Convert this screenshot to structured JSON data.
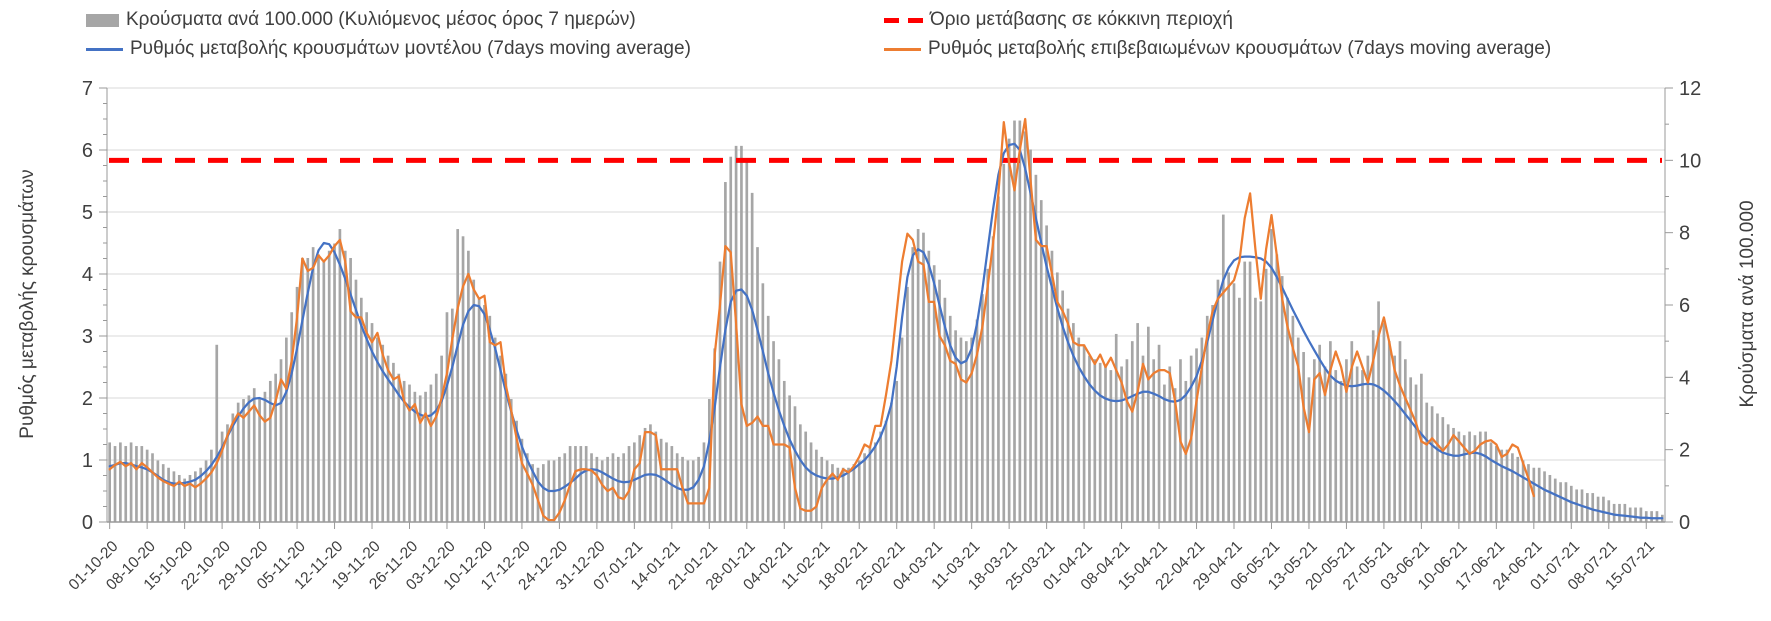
{
  "legend": {
    "items": [
      {
        "label": "Κρούσματα ανά 100.000 (Κυλιόμενος μέσος όρος 7 ημερών)",
        "swatch": "bar",
        "color": "#a6a6a6"
      },
      {
        "label": "Όριο μετάβασης σε κόκκινη περιοχή",
        "swatch": "dashed-line",
        "color": "#ff0000"
      },
      {
        "label": "Ρυθμός μεταβολής κρουσμάτων μοντέλου (7days moving average)",
        "swatch": "line",
        "color": "#4472c4"
      },
      {
        "label": "Ρυθμός μεταβολής επιβεβαιωμένων κρουσμάτων (7days moving average)",
        "swatch": "line",
        "color": "#ed7d31"
      }
    ]
  },
  "chart_data": {
    "type": "combo",
    "grid": "horizontal",
    "background": "#ffffff",
    "axes": {
      "left": {
        "title": "Ρυθμός μεταβολής κρουσμάτων",
        "min": 0,
        "max": 7,
        "ticks": [
          0,
          1,
          2,
          3,
          4,
          5,
          6,
          7
        ]
      },
      "right": {
        "title": "Κρούσματα ανά 100.000",
        "min": 0,
        "max": 12,
        "ticks": [
          0,
          2,
          4,
          6,
          8,
          10,
          12
        ]
      }
    },
    "x": {
      "n_points": 291,
      "tick_every_days": 7,
      "tick_labels": [
        "01-10-20",
        "08-10-20",
        "15-10-20",
        "22-10-20",
        "29-10-20",
        "05-11-20",
        "12-11-20",
        "19-11-20",
        "26-11-20",
        "03-12-20",
        "10-12-20",
        "17-12-20",
        "24-12-20",
        "31-12-20",
        "07-01-21",
        "14-01-21",
        "21-01-21",
        "28-01-21",
        "04-02-21",
        "11-02-21",
        "18-02-21",
        "25-02-21",
        "04-03-21",
        "11-03-21",
        "18-03-21",
        "25-03-21",
        "01-04-21",
        "08-04-21",
        "15-04-21",
        "22-04-21",
        "29-04-21",
        "06-05-21",
        "13-05-21",
        "20-05-21",
        "27-05-21",
        "03-06-21",
        "10-06-21",
        "17-06-21",
        "24-06-21",
        "01-07-21",
        "08-07-21",
        "15-07-21"
      ]
    },
    "series": [
      {
        "name": "Κρούσματα ανά 100.000 (Κυλιόμενος μέσος όρος 7 ημερών)",
        "type": "bar",
        "axis": "right",
        "color": "#a6a6a6",
        "values": [
          2.2,
          2.1,
          2.2,
          2.1,
          2.2,
          2.1,
          2.1,
          2.0,
          1.9,
          1.7,
          1.6,
          1.5,
          1.4,
          1.3,
          1.2,
          1.3,
          1.4,
          1.5,
          1.7,
          2.0,
          4.9,
          2.5,
          2.7,
          3.0,
          3.3,
          3.4,
          3.5,
          3.7,
          3.4,
          3.6,
          3.9,
          4.1,
          4.5,
          5.1,
          5.8,
          6.5,
          7.3,
          7.3,
          7.6,
          7.4,
          7.2,
          7.5,
          7.7,
          8.1,
          7.5,
          7.3,
          6.7,
          6.2,
          5.8,
          5.5,
          5.1,
          4.9,
          4.6,
          4.4,
          4.1,
          3.9,
          3.8,
          3.6,
          3.5,
          3.6,
          3.8,
          4.1,
          4.6,
          5.8,
          5.9,
          8.1,
          7.9,
          7.5,
          6.7,
          6.2,
          6.0,
          5.7,
          5.1,
          4.6,
          4.1,
          3.4,
          2.8,
          2.3,
          1.9,
          1.6,
          1.5,
          1.6,
          1.7,
          1.7,
          1.8,
          1.9,
          2.1,
          2.1,
          2.1,
          2.1,
          1.9,
          1.8,
          1.7,
          1.8,
          1.9,
          1.8,
          1.9,
          2.1,
          2.2,
          2.4,
          2.6,
          2.7,
          2.5,
          2.3,
          2.2,
          2.1,
          1.9,
          1.8,
          1.7,
          1.7,
          1.8,
          2.2,
          3.4,
          4.8,
          7.2,
          9.4,
          10.1,
          10.4,
          10.4,
          10.0,
          9.1,
          7.6,
          6.6,
          5.7,
          5.0,
          4.5,
          3.9,
          3.5,
          3.2,
          2.7,
          2.5,
          2.2,
          2.0,
          1.8,
          1.7,
          1.6,
          1.5,
          1.5,
          1.5,
          1.6,
          1.7,
          1.9,
          2.1,
          2.2,
          2.5,
          2.8,
          3.3,
          3.9,
          5.1,
          6.5,
          7.6,
          8.1,
          8.0,
          7.5,
          7.1,
          6.7,
          6.2,
          5.7,
          5.3,
          5.1,
          5.0,
          5.1,
          5.6,
          6.3,
          7.0,
          7.9,
          9.0,
          9.9,
          10.6,
          11.1,
          11.1,
          10.8,
          10.3,
          9.6,
          8.9,
          8.2,
          7.5,
          6.9,
          6.4,
          5.9,
          5.5,
          5.1,
          4.9,
          4.6,
          4.5,
          4.4,
          4.3,
          4.2,
          5.2,
          4.3,
          4.5,
          5.0,
          5.5,
          4.6,
          5.4,
          4.5,
          4.9,
          3.8,
          4.3,
          3.7,
          4.5,
          3.9,
          4.6,
          4.8,
          5.1,
          5.7,
          6.0,
          6.7,
          8.5,
          6.9,
          6.6,
          6.2,
          7.2,
          7.2,
          6.2,
          6.1,
          7.0,
          8.1,
          7.4,
          6.8,
          6.2,
          5.7,
          5.1,
          4.7,
          4.0,
          4.5,
          4.9,
          4.3,
          5.0,
          4.2,
          3.9,
          4.5,
          5.0,
          4.3,
          4.2,
          4.6,
          5.3,
          6.1,
          5.5,
          5.0,
          4.6,
          5.0,
          4.5,
          4.0,
          3.8,
          4.1,
          3.3,
          3.2,
          3.0,
          2.9,
          2.7,
          2.6,
          2.5,
          2.4,
          2.5,
          2.4,
          2.5,
          2.5,
          2.2,
          2.1,
          2.0,
          2.0,
          1.9,
          1.8,
          1.7,
          1.6,
          1.5,
          1.5,
          1.4,
          1.3,
          1.2,
          1.1,
          1.1,
          1.0,
          0.9,
          0.9,
          0.8,
          0.8,
          0.7,
          0.7,
          0.6,
          0.5,
          0.5,
          0.5,
          0.4,
          0.4,
          0.4,
          0.3,
          0.3,
          0.3,
          0.2
        ]
      },
      {
        "name": "Ρυθμός μεταβολής κρουσμάτων μοντέλου (7days moving average)",
        "type": "line",
        "axis": "left",
        "color": "#4472c4",
        "values": [
          0.9,
          0.92,
          0.95,
          0.95,
          0.93,
          0.9,
          0.88,
          0.85,
          0.8,
          0.74,
          0.68,
          0.64,
          0.62,
          0.62,
          0.63,
          0.65,
          0.68,
          0.74,
          0.82,
          0.92,
          1.05,
          1.2,
          1.38,
          1.55,
          1.7,
          1.83,
          1.93,
          1.99,
          2.0,
          1.97,
          1.92,
          1.88,
          1.92,
          2.1,
          2.4,
          2.8,
          3.25,
          3.7,
          4.1,
          4.38,
          4.5,
          4.48,
          4.35,
          4.15,
          3.92,
          3.67,
          3.42,
          3.17,
          2.95,
          2.75,
          2.58,
          2.43,
          2.3,
          2.18,
          2.05,
          1.94,
          1.85,
          1.78,
          1.73,
          1.7,
          1.72,
          1.8,
          1.95,
          2.2,
          2.5,
          2.85,
          3.18,
          3.4,
          3.5,
          3.48,
          3.35,
          3.1,
          2.8,
          2.45,
          2.1,
          1.78,
          1.48,
          1.22,
          1.0,
          0.82,
          0.65,
          0.55,
          0.5,
          0.5,
          0.52,
          0.57,
          0.63,
          0.7,
          0.78,
          0.83,
          0.85,
          0.84,
          0.8,
          0.75,
          0.7,
          0.66,
          0.64,
          0.65,
          0.68,
          0.72,
          0.76,
          0.77,
          0.76,
          0.72,
          0.66,
          0.6,
          0.55,
          0.52,
          0.52,
          0.56,
          0.68,
          0.9,
          1.3,
          1.85,
          2.5,
          3.1,
          3.55,
          3.73,
          3.75,
          3.65,
          3.42,
          3.1,
          2.75,
          2.4,
          2.08,
          1.8,
          1.55,
          1.33,
          1.15,
          1.0,
          0.88,
          0.8,
          0.75,
          0.72,
          0.7,
          0.7,
          0.72,
          0.75,
          0.8,
          0.86,
          0.93,
          1.0,
          1.1,
          1.22,
          1.38,
          1.6,
          1.9,
          2.5,
          3.3,
          3.95,
          4.3,
          4.4,
          4.35,
          4.15,
          3.85,
          3.5,
          3.15,
          2.85,
          2.65,
          2.56,
          2.6,
          2.8,
          3.2,
          3.75,
          4.4,
          5.05,
          5.6,
          5.95,
          6.08,
          6.1,
          6.0,
          5.7,
          5.3,
          4.9,
          4.5,
          4.12,
          3.78,
          3.45,
          3.15,
          2.9,
          2.68,
          2.5,
          2.35,
          2.22,
          2.12,
          2.04,
          1.99,
          1.96,
          1.95,
          1.96,
          1.99,
          2.03,
          2.07,
          2.1,
          2.1,
          2.07,
          2.03,
          1.98,
          1.95,
          1.94,
          1.97,
          2.05,
          2.18,
          2.35,
          2.6,
          2.9,
          3.25,
          3.6,
          3.9,
          4.1,
          4.22,
          4.27,
          4.28,
          4.28,
          4.27,
          4.25,
          4.2,
          4.1,
          3.95,
          3.78,
          3.6,
          3.42,
          3.25,
          3.08,
          2.92,
          2.77,
          2.62,
          2.48,
          2.36,
          2.28,
          2.23,
          2.2,
          2.19,
          2.2,
          2.22,
          2.23,
          2.22,
          2.18,
          2.12,
          2.04,
          1.95,
          1.85,
          1.74,
          1.63,
          1.52,
          1.42,
          1.32,
          1.24,
          1.17,
          1.12,
          1.09,
          1.07,
          1.07,
          1.09,
          1.11,
          1.12,
          1.1,
          1.06,
          1.0,
          0.95,
          0.9,
          0.86,
          0.82,
          0.77,
          0.72,
          0.67,
          0.62,
          0.57,
          0.52,
          0.48,
          0.44,
          0.4,
          0.36,
          0.32,
          0.29,
          0.26,
          0.23,
          0.2,
          0.18,
          0.16,
          0.14,
          0.12,
          0.11,
          0.1,
          0.09,
          0.08,
          0.07,
          0.07,
          0.06,
          0.06,
          0.06
        ]
      },
      {
        "name": "Ρυθμός μεταβολής επιβεβαιωμένων κρουσμάτων (7days moving average)",
        "type": "line",
        "axis": "left",
        "color": "#ed7d31",
        "values": [
          0.85,
          0.92,
          0.97,
          0.9,
          0.95,
          0.85,
          0.95,
          0.88,
          0.8,
          0.72,
          0.66,
          0.62,
          0.58,
          0.65,
          0.58,
          0.62,
          0.56,
          0.62,
          0.7,
          0.8,
          0.95,
          1.15,
          1.4,
          1.6,
          1.75,
          1.68,
          1.78,
          1.88,
          1.72,
          1.62,
          1.68,
          1.95,
          2.3,
          2.15,
          2.6,
          3.3,
          4.25,
          4.05,
          4.1,
          4.3,
          4.2,
          4.3,
          4.45,
          4.55,
          4.2,
          3.4,
          3.3,
          3.3,
          3.05,
          2.9,
          3.05,
          2.7,
          2.45,
          2.3,
          2.35,
          1.95,
          1.8,
          1.9,
          1.6,
          1.75,
          1.55,
          1.7,
          2.0,
          2.4,
          2.95,
          3.45,
          3.8,
          4.0,
          3.75,
          3.6,
          3.65,
          2.9,
          2.85,
          2.9,
          2.2,
          1.8,
          1.35,
          0.95,
          0.78,
          0.6,
          0.35,
          0.1,
          0.03,
          0.03,
          0.15,
          0.35,
          0.6,
          0.82,
          0.85,
          0.85,
          0.83,
          0.75,
          0.6,
          0.5,
          0.55,
          0.4,
          0.37,
          0.5,
          0.85,
          0.95,
          1.45,
          1.45,
          1.4,
          0.85,
          0.85,
          0.85,
          0.85,
          0.55,
          0.3,
          0.3,
          0.3,
          0.3,
          0.55,
          2.7,
          3.5,
          4.45,
          4.35,
          3.2,
          1.9,
          1.55,
          1.6,
          1.7,
          1.55,
          1.55,
          1.25,
          1.25,
          1.25,
          1.2,
          0.55,
          0.22,
          0.18,
          0.18,
          0.25,
          0.55,
          0.68,
          0.78,
          0.68,
          0.85,
          0.8,
          0.9,
          1.05,
          1.25,
          1.2,
          1.55,
          1.55,
          2.05,
          2.6,
          3.4,
          4.2,
          4.65,
          4.55,
          4.2,
          4.15,
          3.55,
          3.55,
          3.0,
          2.85,
          2.6,
          2.55,
          2.3,
          2.25,
          2.4,
          2.7,
          3.15,
          3.8,
          4.5,
          5.3,
          6.45,
          5.8,
          5.35,
          6.0,
          6.5,
          5.5,
          4.55,
          4.45,
          4.45,
          4.0,
          3.55,
          3.4,
          3.2,
          2.9,
          2.85,
          2.85,
          2.7,
          2.55,
          2.7,
          2.5,
          2.65,
          2.45,
          2.25,
          1.95,
          1.78,
          2.1,
          2.55,
          2.3,
          2.4,
          2.45,
          2.45,
          2.4,
          1.95,
          1.3,
          1.1,
          1.35,
          1.95,
          2.5,
          3.0,
          3.4,
          3.6,
          3.7,
          3.8,
          3.9,
          4.2,
          4.9,
          5.3,
          4.4,
          3.6,
          4.4,
          4.95,
          4.3,
          3.6,
          3.15,
          2.8,
          2.5,
          1.85,
          1.45,
          2.3,
          2.4,
          2.05,
          2.45,
          2.75,
          2.5,
          2.1,
          2.5,
          2.75,
          2.5,
          2.25,
          2.6,
          3.0,
          3.3,
          2.9,
          2.45,
          2.2,
          2.0,
          1.8,
          1.6,
          1.3,
          1.25,
          1.35,
          1.25,
          1.15,
          1.25,
          1.4,
          1.3,
          1.2,
          1.1,
          1.15,
          1.25,
          1.3,
          1.32,
          1.25,
          1.05,
          1.1,
          1.25,
          1.2,
          0.95,
          0.7,
          0.42
        ]
      },
      {
        "name": "Όριο μετάβασης σε κόκκινη περιοχή",
        "type": "threshold",
        "axis": "right",
        "color": "#ff0000",
        "value": 10
      }
    ],
    "style": {
      "gridline_color": "#d9d9d9",
      "axis_color": "#999999",
      "tick_label_color": "#404040"
    }
  }
}
